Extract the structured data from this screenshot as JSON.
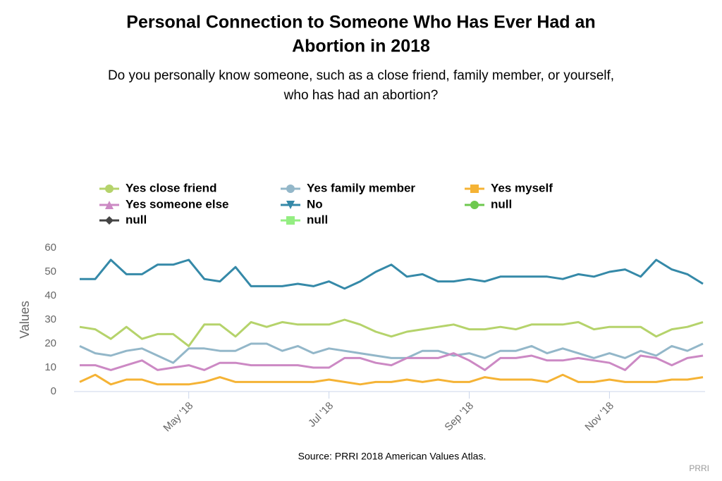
{
  "chart_data": {
    "type": "line",
    "title": [
      "Personal Connection to Someone Who Has Ever Had an",
      "Abortion in 2018"
    ],
    "subtitle": [
      "Do you personally know someone, such as a close friend, family member, or yourself,",
      "who has had an abortion?"
    ],
    "y_label": "Values",
    "source": "Source: PRRI 2018 American Values Atlas.",
    "credit": "PRRI",
    "categories": [
      null,
      null,
      null,
      null,
      null,
      null,
      null,
      "May '18",
      null,
      null,
      null,
      null,
      null,
      null,
      null,
      null,
      "Jul '18",
      null,
      null,
      null,
      null,
      null,
      null,
      null,
      null,
      "Sep '18",
      null,
      null,
      null,
      null,
      null,
      null,
      null,
      null,
      "Nov '18",
      null,
      null,
      null,
      null,
      null,
      null
    ],
    "ylim": [
      0,
      60
    ],
    "yticks": [
      0,
      10,
      20,
      30,
      40,
      50,
      60
    ],
    "grid": false,
    "legend": "top",
    "series": [
      {
        "name": "Yes close friend",
        "color": "#b5d36b",
        "marker": "circle",
        "values": [
          27,
          26,
          22,
          27,
          22,
          24,
          24,
          19,
          28,
          28,
          23,
          29,
          27,
          29,
          28,
          28,
          28,
          30,
          28,
          25,
          23,
          25,
          26,
          27,
          28,
          26,
          26,
          27,
          26,
          28,
          28,
          28,
          29,
          26,
          27,
          27,
          27,
          23,
          26,
          27,
          29
        ]
      },
      {
        "name": "Yes family member",
        "color": "#93b7c9",
        "marker": "circle",
        "values": [
          19,
          16,
          15,
          17,
          18,
          15,
          12,
          18,
          18,
          17,
          17,
          20,
          20,
          17,
          19,
          16,
          18,
          17,
          16,
          15,
          14,
          14,
          17,
          17,
          15,
          16,
          14,
          17,
          17,
          19,
          16,
          18,
          16,
          14,
          16,
          14,
          17,
          15,
          19,
          17,
          20
        ]
      },
      {
        "name": "Yes myself",
        "color": "#f5b335",
        "marker": "square",
        "values": [
          4,
          7,
          3,
          5,
          5,
          3,
          3,
          3,
          4,
          6,
          4,
          4,
          4,
          4,
          4,
          4,
          5,
          4,
          3,
          4,
          4,
          5,
          4,
          5,
          4,
          4,
          6,
          5,
          5,
          5,
          4,
          7,
          4,
          4,
          5,
          4,
          4,
          4,
          5,
          5,
          6
        ]
      },
      {
        "name": "Yes someone else",
        "color": "#cc89c4",
        "marker": "triangle",
        "values": [
          11,
          11,
          9,
          11,
          13,
          9,
          10,
          11,
          9,
          12,
          12,
          11,
          11,
          11,
          11,
          10,
          10,
          14,
          14,
          12,
          11,
          14,
          14,
          14,
          16,
          13,
          9,
          14,
          14,
          15,
          13,
          13,
          14,
          13,
          12,
          9,
          15,
          14,
          11,
          14,
          15
        ]
      },
      {
        "name": "No",
        "color": "#3589a8",
        "marker": "triangle-down",
        "values": [
          47,
          47,
          55,
          49,
          49,
          53,
          53,
          55,
          47,
          46,
          52,
          44,
          44,
          44,
          45,
          44,
          46,
          43,
          46,
          50,
          53,
          48,
          49,
          46,
          46,
          47,
          46,
          48,
          48,
          48,
          48,
          47,
          49,
          48,
          50,
          51,
          48,
          55,
          51,
          49,
          45
        ]
      },
      {
        "name": "null",
        "color": "#6ec94f",
        "marker": "circle",
        "values": [
          null,
          null,
          null,
          null,
          null,
          null,
          null,
          null,
          null,
          null,
          null,
          null,
          null,
          null,
          null,
          null,
          null,
          null,
          null,
          null,
          null,
          null,
          null,
          null,
          null,
          null,
          null,
          null,
          null,
          null,
          null,
          null,
          null,
          null,
          null,
          null,
          null,
          null,
          null,
          null,
          null
        ]
      },
      {
        "name": "null",
        "color": "#444444",
        "marker": "diamond",
        "values": [
          null,
          null,
          null,
          null,
          null,
          null,
          null,
          null,
          null,
          null,
          null,
          null,
          null,
          null,
          null,
          null,
          null,
          null,
          null,
          null,
          null,
          null,
          null,
          null,
          null,
          null,
          null,
          null,
          null,
          null,
          null,
          null,
          null,
          null,
          null,
          null,
          null,
          null,
          null,
          null,
          null
        ]
      },
      {
        "name": "null",
        "color": "#94ee82",
        "marker": "square",
        "values": [
          null,
          null,
          null,
          null,
          null,
          null,
          null,
          null,
          null,
          null,
          null,
          null,
          null,
          null,
          null,
          null,
          null,
          null,
          null,
          null,
          null,
          null,
          null,
          null,
          null,
          null,
          null,
          null,
          null,
          null,
          null,
          null,
          null,
          null,
          null,
          null,
          null,
          null,
          null,
          null,
          null
        ]
      }
    ]
  }
}
